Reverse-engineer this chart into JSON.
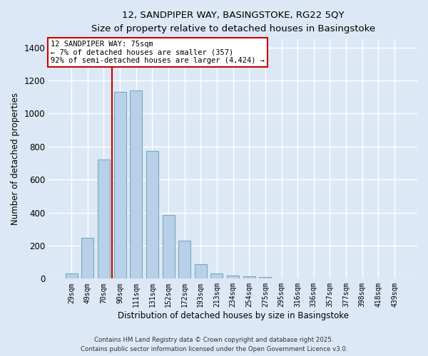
{
  "title_line1": "12, SANDPIPER WAY, BASINGSTOKE, RG22 5QY",
  "title_line2": "Size of property relative to detached houses in Basingstoke",
  "xlabel": "Distribution of detached houses by size in Basingstoke",
  "ylabel": "Number of detached properties",
  "bar_labels": [
    "29sqm",
    "49sqm",
    "70sqm",
    "90sqm",
    "111sqm",
    "131sqm",
    "152sqm",
    "172sqm",
    "193sqm",
    "213sqm",
    "234sqm",
    "254sqm",
    "275sqm",
    "295sqm",
    "316sqm",
    "336sqm",
    "357sqm",
    "377sqm",
    "398sqm",
    "418sqm",
    "439sqm"
  ],
  "bar_values": [
    30,
    248,
    720,
    1130,
    1140,
    775,
    385,
    232,
    88,
    30,
    18,
    15,
    12,
    0,
    0,
    0,
    0,
    0,
    0,
    0,
    0
  ],
  "bar_color": "#b8d0e8",
  "bar_edge_color": "#7aaabf",
  "vline_color": "#cc0000",
  "vline_pos": 2.5,
  "ylim": [
    0,
    1450
  ],
  "yticks": [
    0,
    200,
    400,
    600,
    800,
    1000,
    1200,
    1400
  ],
  "annotation_title": "12 SANDPIPER WAY: 75sqm",
  "annotation_line2": "← 7% of detached houses are smaller (357)",
  "annotation_line3": "92% of semi-detached houses are larger (4,424) →",
  "annotation_box_color": "#ffffff",
  "annotation_box_edge": "#cc0000",
  "footer_line1": "Contains HM Land Registry data © Crown copyright and database right 2025.",
  "footer_line2": "Contains public sector information licensed under the Open Government Licence v3.0.",
  "background_color": "#dce8f5",
  "grid_color": "#ffffff"
}
